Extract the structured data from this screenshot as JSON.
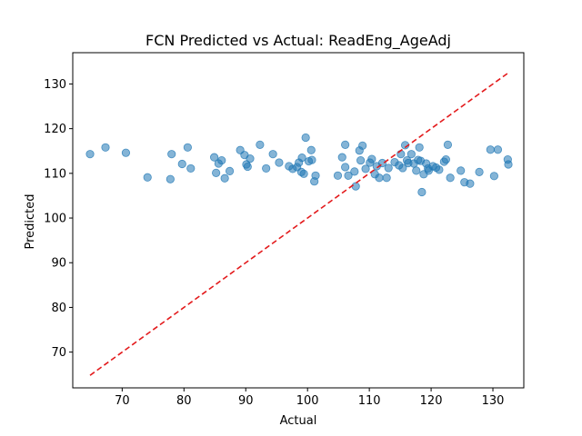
{
  "chart_data": {
    "type": "scatter",
    "title": "FCN Predicted vs Actual: ReadEng_AgeAdj",
    "xlabel": "Actual",
    "ylabel": "Predicted",
    "xlim": [
      62,
      135
    ],
    "ylim": [
      62,
      137
    ],
    "xticks": [
      70,
      80,
      90,
      100,
      110,
      120,
      130
    ],
    "yticks": [
      70,
      80,
      90,
      100,
      110,
      120,
      130
    ],
    "grid": false,
    "legend": "none",
    "marker_color": "#1f77b4",
    "marker_alpha": 0.55,
    "reference_line": {
      "style": "dashed",
      "color": "#e31a1c",
      "from": [
        64.8,
        64.8
      ],
      "to": [
        132.5,
        132.5
      ]
    },
    "points": [
      [
        64.8,
        114.3
      ],
      [
        67.3,
        115.8
      ],
      [
        70.6,
        114.6
      ],
      [
        74.1,
        109.1
      ],
      [
        77.8,
        108.7
      ],
      [
        78.0,
        114.3
      ],
      [
        79.7,
        112.1
      ],
      [
        80.6,
        115.8
      ],
      [
        81.1,
        111.1
      ],
      [
        84.9,
        113.6
      ],
      [
        85.2,
        110.1
      ],
      [
        85.6,
        112.2
      ],
      [
        86.1,
        112.9
      ],
      [
        86.6,
        108.9
      ],
      [
        87.4,
        110.5
      ],
      [
        89.1,
        115.2
      ],
      [
        89.8,
        114.1
      ],
      [
        90.1,
        112.0
      ],
      [
        90.3,
        111.5
      ],
      [
        90.7,
        113.3
      ],
      [
        92.3,
        116.4
      ],
      [
        93.3,
        111.1
      ],
      [
        94.4,
        114.3
      ],
      [
        95.4,
        112.4
      ],
      [
        97.0,
        111.6
      ],
      [
        97.6,
        111.0
      ],
      [
        98.3,
        111.4
      ],
      [
        98.6,
        112.4
      ],
      [
        99.1,
        113.5
      ],
      [
        99.0,
        110.3
      ],
      [
        99.4,
        109.9
      ],
      [
        99.7,
        118.0
      ],
      [
        100.2,
        112.7
      ],
      [
        100.6,
        115.2
      ],
      [
        100.7,
        113.0
      ],
      [
        101.1,
        108.2
      ],
      [
        101.3,
        109.5
      ],
      [
        104.9,
        109.5
      ],
      [
        105.6,
        113.6
      ],
      [
        106.1,
        116.4
      ],
      [
        106.1,
        111.4
      ],
      [
        106.6,
        109.5
      ],
      [
        107.6,
        110.4
      ],
      [
        107.8,
        107.1
      ],
      [
        108.4,
        115.1
      ],
      [
        108.6,
        112.9
      ],
      [
        108.9,
        116.2
      ],
      [
        109.4,
        111.0
      ],
      [
        110.1,
        112.4
      ],
      [
        110.4,
        113.2
      ],
      [
        110.9,
        109.8
      ],
      [
        111.2,
        111.6
      ],
      [
        111.6,
        109.0
      ],
      [
        112.1,
        112.3
      ],
      [
        112.8,
        109.0
      ],
      [
        113.1,
        111.2
      ],
      [
        114.1,
        112.5
      ],
      [
        114.8,
        111.8
      ],
      [
        115.1,
        114.3
      ],
      [
        115.4,
        111.2
      ],
      [
        115.8,
        116.3
      ],
      [
        116.1,
        112.9
      ],
      [
        116.3,
        112.3
      ],
      [
        116.8,
        114.3
      ],
      [
        117.2,
        112.2
      ],
      [
        117.6,
        110.6
      ],
      [
        117.9,
        113.0
      ],
      [
        118.1,
        115.8
      ],
      [
        118.3,
        112.8
      ],
      [
        118.5,
        105.8
      ],
      [
        118.8,
        109.8
      ],
      [
        119.2,
        112.2
      ],
      [
        119.5,
        111.1
      ],
      [
        119.6,
        110.6
      ],
      [
        120.3,
        111.6
      ],
      [
        120.8,
        111.3
      ],
      [
        121.3,
        110.8
      ],
      [
        122.1,
        112.6
      ],
      [
        122.4,
        113.1
      ],
      [
        122.7,
        116.4
      ],
      [
        123.1,
        109.0
      ],
      [
        124.8,
        110.6
      ],
      [
        125.4,
        108.0
      ],
      [
        126.3,
        107.7
      ],
      [
        127.8,
        110.3
      ],
      [
        129.6,
        115.3
      ],
      [
        130.2,
        109.4
      ],
      [
        130.8,
        115.3
      ],
      [
        132.4,
        113.1
      ],
      [
        132.5,
        112.0
      ]
    ]
  }
}
